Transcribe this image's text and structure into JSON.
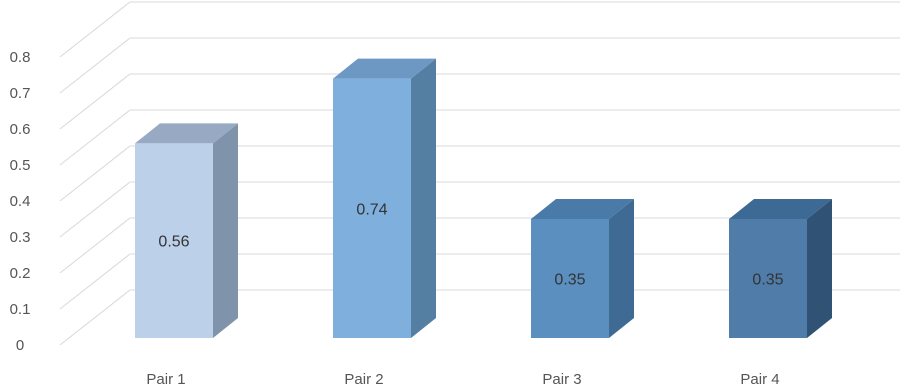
{
  "chart_data": {
    "type": "bar",
    "categories": [
      "Pair 1",
      "Pair 2",
      "Pair 3",
      "Pair 4"
    ],
    "values": [
      0.56,
      0.74,
      0.35,
      0.35
    ],
    "data_labels": [
      "0.56",
      "0.74",
      "0.35",
      "0.35"
    ],
    "y_ticks": [
      "0",
      "0.1",
      "0.2",
      "0.3",
      "0.4",
      "0.5",
      "0.6",
      "0.7",
      "0.8"
    ],
    "ylim": [
      0,
      0.8
    ],
    "grid": true,
    "legend": "none",
    "style": "3d-column",
    "bar_colors": [
      {
        "front": "#bdd0ea",
        "side": "#7f93ab",
        "top": "#98a9c3"
      },
      {
        "front": "#7fb0dd",
        "side": "#557ea3",
        "top": "#6d98c3"
      },
      {
        "front": "#5a8fc0",
        "side": "#3e6a93",
        "top": "#4a7aa8"
      },
      {
        "front": "#4f7ca8",
        "side": "#2f5275",
        "top": "#3c6a94"
      }
    ]
  }
}
